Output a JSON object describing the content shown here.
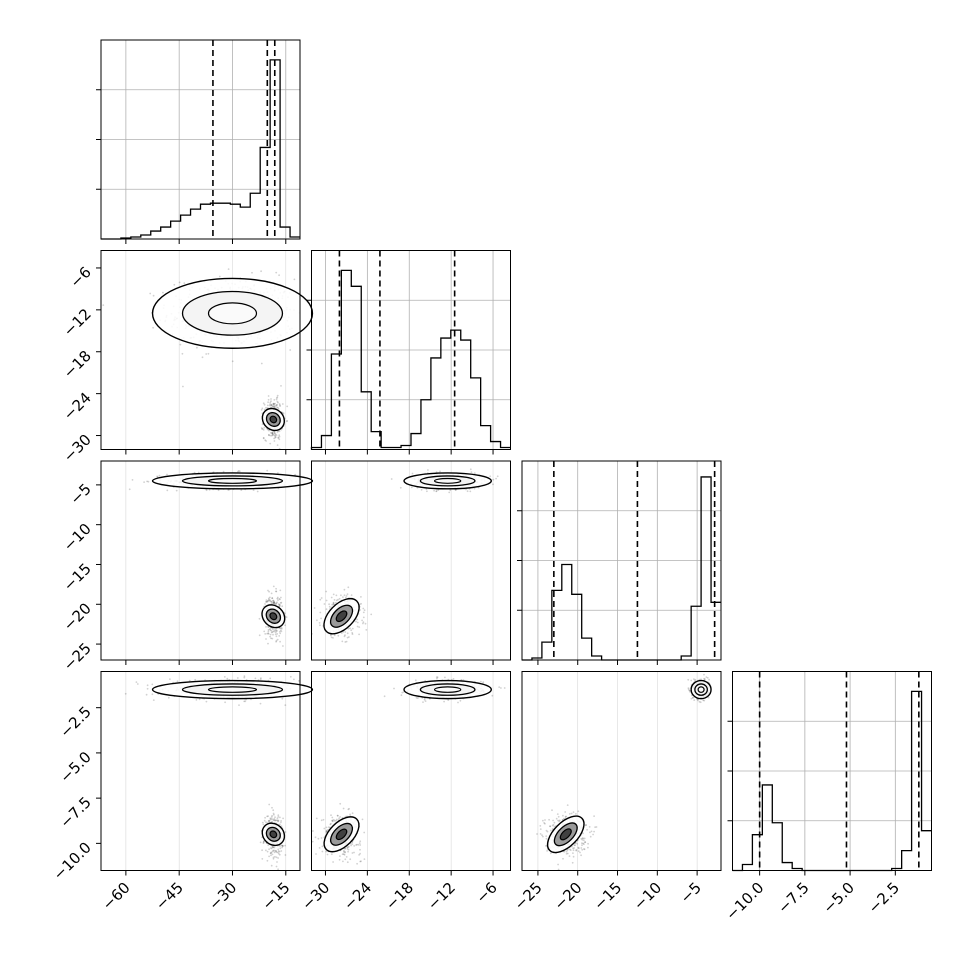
{
  "chart_data": {
    "type": "corner",
    "parameters": [
      {
        "id": "p0",
        "range": [
          -67,
          -11
        ],
        "ticks": [
          {
            "v": -60,
            "label": "−60"
          },
          {
            "v": -45,
            "label": "−45"
          },
          {
            "v": -30,
            "label": "−30"
          },
          {
            "v": -15,
            "label": "−15"
          }
        ],
        "quantiles": [
          -35.5,
          -20.2,
          -18.1
        ],
        "histogram": {
          "edges": [
            -67,
            -64.2,
            -61.4,
            -58.6,
            -55.8,
            -53,
            -50.2,
            -47.4,
            -44.6,
            -41.8,
            -39,
            -36.2,
            -33.4,
            -30.6,
            -27.8,
            -25,
            -22.2,
            -19.4,
            -16.6,
            -13.8,
            -11
          ],
          "heights": [
            0,
            0,
            0.005,
            0.01,
            0.02,
            0.04,
            0.06,
            0.09,
            0.12,
            0.15,
            0.175,
            0.18,
            0.18,
            0.175,
            0.16,
            0.23,
            0.46,
            0.9,
            0.06,
            0.01
          ]
        }
      },
      {
        "id": "p1",
        "range": [
          -32,
          -3.5
        ],
        "ticks": [
          {
            "v": -30,
            "label": "−30"
          },
          {
            "v": -24,
            "label": "−24"
          },
          {
            "v": -18,
            "label": "−18"
          },
          {
            "v": -12,
            "label": "−12"
          },
          {
            "v": -6,
            "label": "−6"
          }
        ],
        "quantiles": [
          -28,
          -22.2,
          -11.5
        ],
        "histogram": {
          "edges": [
            -32,
            -30.575,
            -29.15,
            -27.725,
            -26.3,
            -24.875,
            -23.45,
            -22.025,
            -20.6,
            -19.175,
            -17.75,
            -16.325,
            -14.9,
            -13.475,
            -12.05,
            -10.625,
            -9.2,
            -7.775,
            -6.35,
            -4.925,
            -3.5
          ],
          "heights": [
            0.01,
            0.07,
            0.48,
            0.9,
            0.82,
            0.29,
            0.09,
            0.01,
            0.01,
            0.02,
            0.08,
            0.25,
            0.46,
            0.56,
            0.6,
            0.55,
            0.36,
            0.12,
            0.04,
            0.01
          ]
        }
      },
      {
        "id": "p2",
        "range": [
          -27,
          -2
        ],
        "ticks": [
          {
            "v": -25,
            "label": "−25"
          },
          {
            "v": -20,
            "label": "−20"
          },
          {
            "v": -15,
            "label": "−15"
          },
          {
            "v": -10,
            "label": "−10"
          },
          {
            "v": -5,
            "label": "−5"
          }
        ],
        "quantiles": [
          -23,
          -12.5,
          -2.8
        ],
        "histogram": {
          "edges": [
            -27,
            -25.75,
            -24.5,
            -23.25,
            -22,
            -20.75,
            -19.5,
            -18.25,
            -17,
            -15.75,
            -14.5,
            -13.25,
            -12,
            -10.75,
            -9.5,
            -8.25,
            -7,
            -5.75,
            -4.5,
            -3.25,
            -2
          ],
          "heights": [
            0,
            0.01,
            0.09,
            0.35,
            0.48,
            0.33,
            0.11,
            0.02,
            0,
            0,
            0,
            0,
            0,
            0,
            0,
            0,
            0.02,
            0.27,
            0.92,
            0.29
          ]
        }
      },
      {
        "id": "p3",
        "range": [
          -11.5,
          -0.5
        ],
        "ticks": [
          {
            "v": -10,
            "label": "−10.0"
          },
          {
            "v": -7.5,
            "label": "−7.5"
          },
          {
            "v": -5,
            "label": "−5.0"
          },
          {
            "v": -2.5,
            "label": "−2.5"
          }
        ],
        "quantiles": [
          -10,
          -5.2,
          -1.2
        ],
        "histogram": {
          "edges": [
            -11.5,
            -10.95,
            -10.4,
            -9.85,
            -9.3,
            -8.75,
            -8.2,
            -7.65,
            -7.1,
            -6.55,
            -6,
            -5.45,
            -4.9,
            -4.35,
            -3.8,
            -3.25,
            -2.7,
            -2.15,
            -1.6,
            -1.05,
            -0.5
          ],
          "heights": [
            0,
            0.03,
            0.18,
            0.43,
            0.24,
            0.04,
            0.01,
            0,
            0,
            0,
            0,
            0,
            0,
            0,
            0,
            0,
            0.01,
            0.1,
            0.9,
            0.2
          ]
        }
      }
    ],
    "modes": [
      {
        "weight": 0.6,
        "mean": [
          -30,
          -12.5,
          -4.5,
          -1.5
        ],
        "sd": [
          9,
          2.5,
          0.5,
          0.25
        ]
      },
      {
        "weight": 0.4,
        "mean": [
          -18.5,
          -27.7,
          -21.5,
          -9.5
        ],
        "sd": [
          1.3,
          1.4,
          1.3,
          0.55
        ]
      }
    ],
    "grid": true
  }
}
